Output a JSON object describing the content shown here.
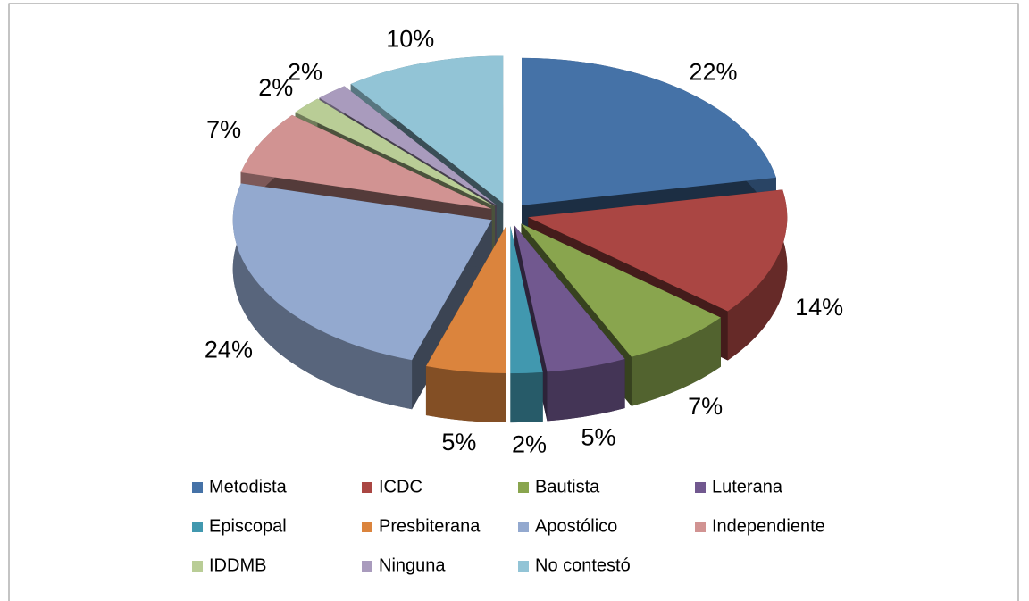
{
  "chart_data": {
    "type": "pie",
    "categories": [
      "Metodista",
      "ICDC",
      "Bautista",
      "Luterana",
      "Episcopal",
      "Presbiterana",
      "Apostólico",
      "Independiente",
      "IDDMB",
      "Ninguna",
      "No contestó"
    ],
    "values": [
      22,
      14,
      7,
      5,
      2,
      5,
      24,
      7,
      2,
      2,
      10
    ],
    "value_labels": [
      "22%",
      "14%",
      "7%",
      "5%",
      "2%",
      "5%",
      "24%",
      "7%",
      "2%",
      "2%",
      "10%"
    ],
    "colors": [
      "#4572a7",
      "#aa4643",
      "#89a54e",
      "#71588f",
      "#4198af",
      "#db843d",
      "#93a9cf",
      "#d19392",
      "#b9cd96",
      "#a99bbd",
      "#92c4d6"
    ],
    "legend": "bottom"
  }
}
